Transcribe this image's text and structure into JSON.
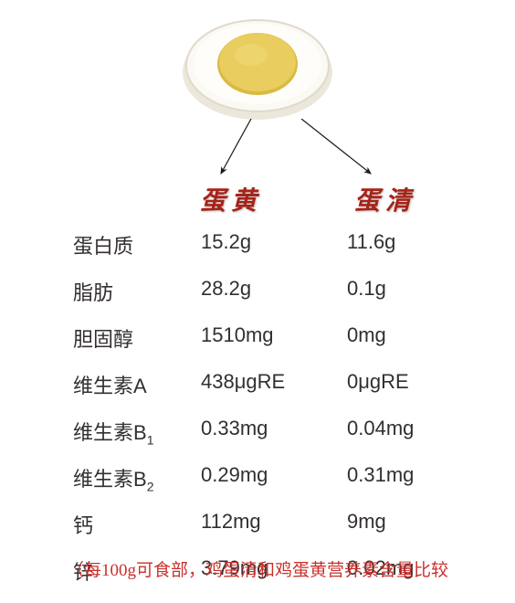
{
  "egg": {
    "outer_white_color": "#faf8f4",
    "outer_shadow": "#d9d4c9",
    "yolk_color": "#e8cb5a",
    "yolk_shadow": "#d4b53e",
    "width": 170,
    "height": 120
  },
  "arrows": {
    "color": "#1a1a1a",
    "stroke_width": 1.2
  },
  "headers": {
    "yolk": "蛋黄",
    "white": "蛋清",
    "color": "#a62317",
    "fontsize": 28
  },
  "nutrients": {
    "label_color": "#332f2e",
    "value_color": "#332f2e",
    "fontsize": 22,
    "rows": [
      {
        "name": "蛋白质",
        "yolk": "15.2g",
        "white": "11.6g"
      },
      {
        "name": "脂肪",
        "yolk": "28.2g",
        "white": "0.1g"
      },
      {
        "name": "胆固醇",
        "yolk": "1510mg",
        "white": "0mg"
      },
      {
        "name": "维生素A",
        "yolk": "438μgRE",
        "white": "0μgRE"
      },
      {
        "name": "维生素B₁",
        "yolk": "0.33mg",
        "white": "0.04mg"
      },
      {
        "name": "维生素B₂",
        "yolk": "0.29mg",
        "white": "0.31mg"
      },
      {
        "name": "钙",
        "yolk": "112mg",
        "white": "9mg"
      },
      {
        "name": "锌",
        "yolk": "3.79mg",
        "white": "0.02mg"
      }
    ]
  },
  "footnote": {
    "text": "（每100g可食部，鸡蛋清和鸡蛋黄营养素含量比较",
    "color": "#c9302c",
    "fontsize": 19
  }
}
